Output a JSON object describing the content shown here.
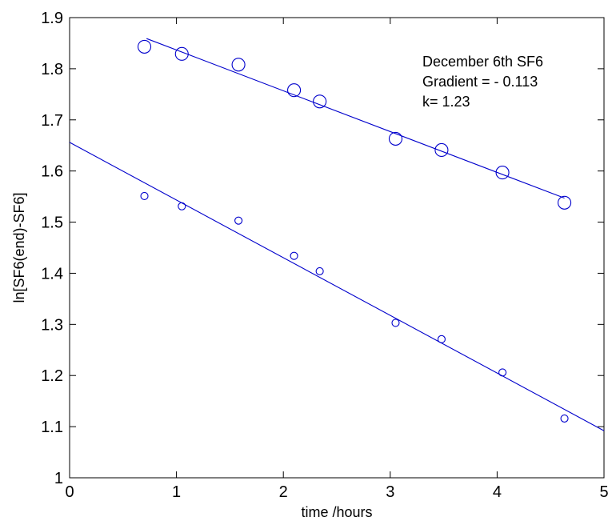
{
  "chart_data": {
    "type": "scatter",
    "xlabel": "time /hours",
    "ylabel": "ln[SF6(end)-SF6]",
    "xlim": [
      0,
      5
    ],
    "ylim": [
      1.0,
      1.9
    ],
    "xticks": [
      0,
      1,
      2,
      3,
      4,
      5
    ],
    "yticks": [
      1.0,
      1.1,
      1.2,
      1.3,
      1.4,
      1.5,
      1.6,
      1.7,
      1.8,
      1.9
    ],
    "xtick_labels": [
      "0",
      "1",
      "2",
      "3",
      "4",
      "5"
    ],
    "ytick_labels": [
      "1",
      "1.1",
      "1.2",
      "1.3",
      "1.4",
      "1.5",
      "1.6",
      "1.7",
      "1.8",
      "1.9"
    ],
    "grid": false,
    "legend": "none",
    "annotations": [
      "December 6th SF6",
      "Gradient = - 0.113",
      "k= 1.23"
    ],
    "series": [
      {
        "marker": "large-open-circle",
        "color": "#0000cc",
        "x": [
          0.7,
          1.05,
          1.58,
          2.1,
          2.34,
          3.05,
          3.48,
          4.05,
          4.63
        ],
        "y": [
          1.843,
          1.829,
          1.808,
          1.758,
          1.736,
          1.663,
          1.641,
          1.597,
          1.538
        ],
        "fit_line": {
          "x": [
            0.72,
            4.63
          ],
          "y": [
            1.859,
            1.547
          ]
        }
      },
      {
        "marker": "small-open-circle",
        "color": "#0000cc",
        "x": [
          0.7,
          1.05,
          1.58,
          2.1,
          2.34,
          3.05,
          3.48,
          4.05,
          4.63
        ],
        "y": [
          1.551,
          1.531,
          1.503,
          1.434,
          1.404,
          1.303,
          1.271,
          1.206,
          1.116
        ],
        "fit_line": {
          "x": [
            0.0,
            5.0
          ],
          "y": [
            1.656,
            1.092
          ]
        }
      }
    ]
  }
}
